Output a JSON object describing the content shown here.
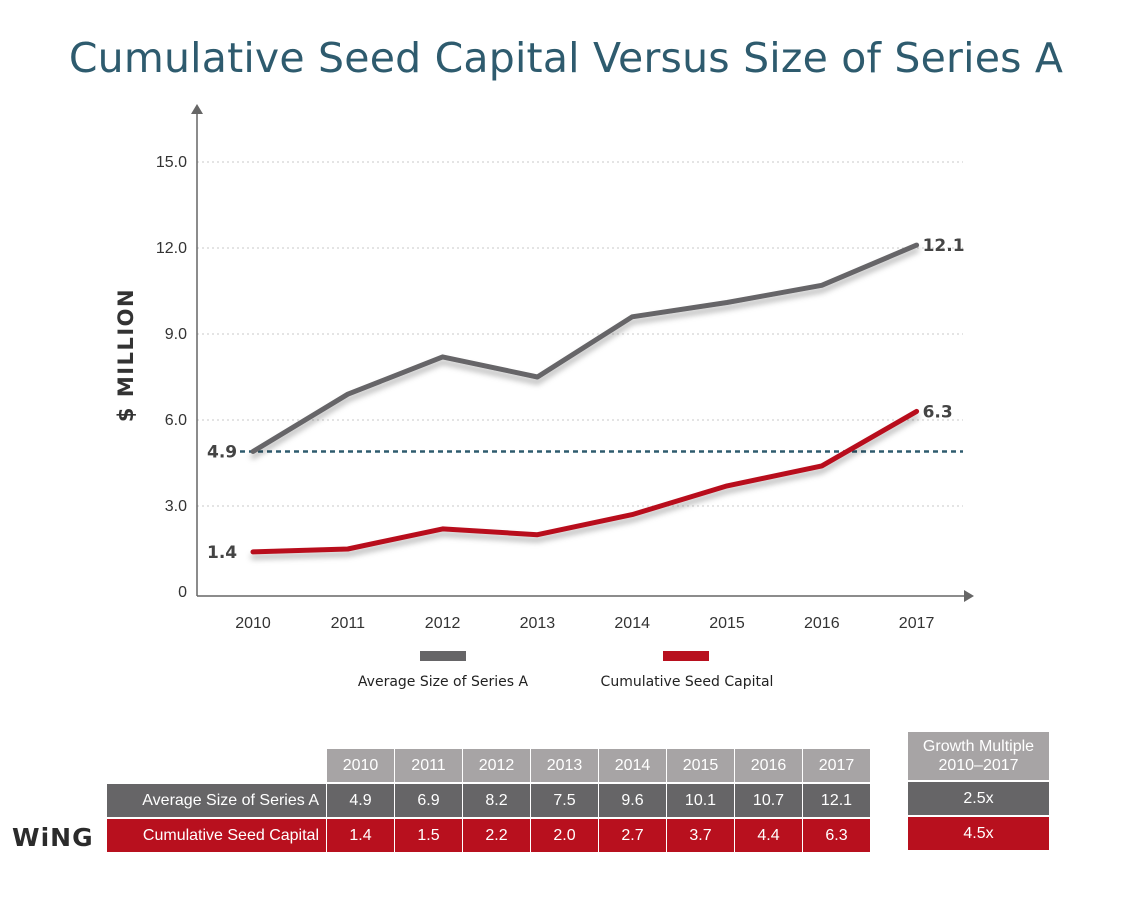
{
  "title": "Cumulative Seed Capital Versus Size of Series A",
  "logo": "WiNG",
  "colors": {
    "title": "#2e5b6e",
    "series_a": "#666567",
    "seed": "#b8101e",
    "reference_line": "#2e5b6e",
    "table_header": "#a7a4a5"
  },
  "chart_data": {
    "type": "line",
    "x": [
      "2010",
      "2011",
      "2012",
      "2013",
      "2014",
      "2015",
      "2016",
      "2017"
    ],
    "ylabel": "$ MILLION",
    "xlabel": "",
    "ylim": [
      0,
      15
    ],
    "yticks": [
      "0",
      "3.0",
      "6.0",
      "9.0",
      "12.0",
      "15.0"
    ],
    "ytick_values": [
      0,
      3,
      6,
      9,
      12,
      15
    ],
    "grid": "horizontal dotted",
    "legend_position": "bottom",
    "series": [
      {
        "name": "Average Size of Series A",
        "color": "#666567",
        "values": [
          4.9,
          6.9,
          8.2,
          7.5,
          9.6,
          10.1,
          10.7,
          12.1
        ]
      },
      {
        "name": "Cumulative Seed Capital",
        "color": "#b8101e",
        "values": [
          1.4,
          1.5,
          2.2,
          2.0,
          2.7,
          3.7,
          4.4,
          6.3
        ]
      }
    ],
    "reference_line": {
      "value": 4.9,
      "style": "dashed"
    },
    "annotations": [
      {
        "text": "4.9",
        "x": "2010",
        "y": 4.9,
        "anchor": "start"
      },
      {
        "text": "1.4",
        "x": "2010",
        "y": 1.4,
        "anchor": "start"
      },
      {
        "text": "12.1",
        "x": "2017",
        "y": 12.1,
        "anchor": "end"
      },
      {
        "text": "6.3",
        "x": "2017",
        "y": 6.3,
        "anchor": "end"
      }
    ]
  },
  "table": {
    "years": [
      "2010",
      "2011",
      "2012",
      "2013",
      "2014",
      "2015",
      "2016",
      "2017"
    ],
    "rows": [
      {
        "label": "Average Size of Series A",
        "values": [
          "4.9",
          "6.9",
          "8.2",
          "7.5",
          "9.6",
          "10.1",
          "10.7",
          "12.1"
        ]
      },
      {
        "label": "Cumulative Seed Capital",
        "values": [
          "1.4",
          "1.5",
          "2.2",
          "2.0",
          "2.7",
          "3.7",
          "4.4",
          "6.3"
        ]
      }
    ]
  },
  "growth": {
    "header_line1": "Growth Multiple",
    "header_line2": "2010–2017",
    "series_a": "2.5x",
    "seed": "4.5x"
  }
}
